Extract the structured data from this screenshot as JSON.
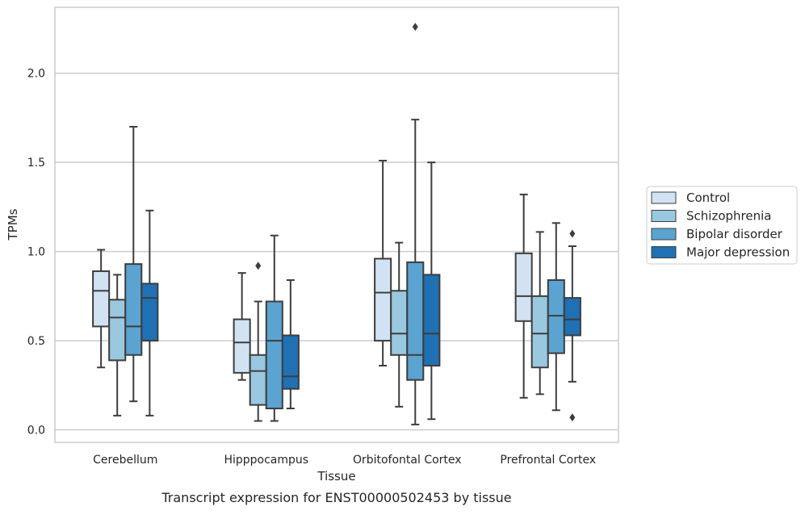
{
  "caption": "Transcript expression for ENST00000502453 by tissue",
  "chart_data": {
    "type": "boxplot",
    "title": "",
    "xlabel": "Tissue",
    "ylabel": "TPMs",
    "ylim": [
      -0.07,
      2.37
    ],
    "yticks": [
      0.0,
      0.5,
      1.0,
      1.5,
      2.0
    ],
    "ytick_labels": [
      "0.0",
      "0.5",
      "1.0",
      "1.5",
      "2.0"
    ],
    "grid": "horizontal",
    "legend_position": "right",
    "categories": [
      "Cerebellum",
      "Hipppocampus",
      "Orbitofontal Cortex",
      "Prefrontal Cortex"
    ],
    "series": [
      {
        "name": "Control",
        "color": "#d1e2f2",
        "boxes": [
          {
            "whislo": 0.35,
            "q1": 0.58,
            "med": 0.78,
            "q3": 0.89,
            "whishi": 1.01,
            "fliers": []
          },
          {
            "whislo": 0.28,
            "q1": 0.32,
            "med": 0.49,
            "q3": 0.62,
            "whishi": 0.88,
            "fliers": []
          },
          {
            "whislo": 0.36,
            "q1": 0.5,
            "med": 0.77,
            "q3": 0.96,
            "whishi": 1.51,
            "fliers": []
          },
          {
            "whislo": 0.18,
            "q1": 0.61,
            "med": 0.75,
            "q3": 0.99,
            "whishi": 1.32,
            "fliers": []
          }
        ]
      },
      {
        "name": "Schizophrenia",
        "color": "#9ac8e0",
        "boxes": [
          {
            "whislo": 0.08,
            "q1": 0.39,
            "med": 0.63,
            "q3": 0.73,
            "whishi": 0.87,
            "fliers": []
          },
          {
            "whislo": 0.05,
            "q1": 0.14,
            "med": 0.33,
            "q3": 0.42,
            "whishi": 0.72,
            "fliers": [
              0.92
            ]
          },
          {
            "whislo": 0.13,
            "q1": 0.42,
            "med": 0.54,
            "q3": 0.78,
            "whishi": 1.05,
            "fliers": []
          },
          {
            "whislo": 0.2,
            "q1": 0.35,
            "med": 0.54,
            "q3": 0.75,
            "whishi": 1.11,
            "fliers": []
          }
        ]
      },
      {
        "name": "Bipolar disorder",
        "color": "#5ba3d0",
        "boxes": [
          {
            "whislo": 0.16,
            "q1": 0.42,
            "med": 0.58,
            "q3": 0.93,
            "whishi": 1.7,
            "fliers": []
          },
          {
            "whislo": 0.05,
            "q1": 0.12,
            "med": 0.5,
            "q3": 0.72,
            "whishi": 1.09,
            "fliers": []
          },
          {
            "whislo": 0.03,
            "q1": 0.28,
            "med": 0.42,
            "q3": 0.94,
            "whishi": 1.74,
            "fliers": [
              2.26
            ]
          },
          {
            "whislo": 0.11,
            "q1": 0.43,
            "med": 0.64,
            "q3": 0.84,
            "whishi": 1.16,
            "fliers": []
          }
        ]
      },
      {
        "name": "Major depression",
        "color": "#2070b4",
        "boxes": [
          {
            "whislo": 0.08,
            "q1": 0.5,
            "med": 0.74,
            "q3": 0.82,
            "whishi": 1.23,
            "fliers": []
          },
          {
            "whislo": 0.12,
            "q1": 0.23,
            "med": 0.3,
            "q3": 0.53,
            "whishi": 0.84,
            "fliers": []
          },
          {
            "whislo": 0.06,
            "q1": 0.36,
            "med": 0.54,
            "q3": 0.87,
            "whishi": 1.5,
            "fliers": []
          },
          {
            "whislo": 0.27,
            "q1": 0.53,
            "med": 0.62,
            "q3": 0.74,
            "whishi": 1.03,
            "fliers": [
              1.1,
              0.07
            ]
          }
        ]
      }
    ]
  }
}
